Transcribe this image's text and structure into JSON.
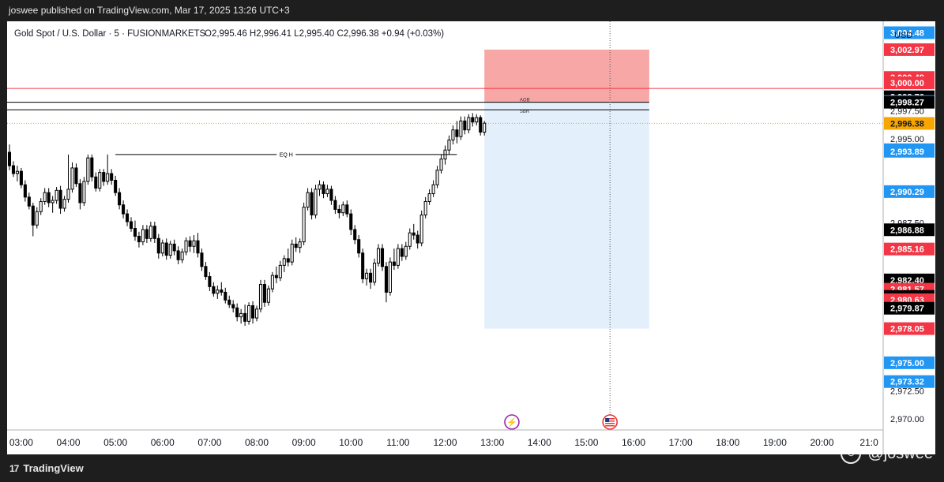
{
  "header": {
    "publish_line": "joswee published on TradingView.com, Mar 17, 2025 13:26 UTC+3"
  },
  "legend": {
    "symbol": "Gold Spot / U.S. Dollar · 5 · FUSIONMARKETS",
    "ohlc": "O2,995.46  H2,996.41  L2,995.40  C2,996.38  +0.94 (+0.03%)"
  },
  "currency": "USD",
  "footer": {
    "brand": "TradingView",
    "watermark": "@joswee"
  },
  "colors": {
    "red": "#f23645",
    "blue": "#2962ff",
    "blue_label": "#2196f3",
    "black": "#000000",
    "orange": "#f7a600",
    "stop_zone": "#f7a7a5",
    "target_zone": "#e3effb",
    "candle": "#000000"
  },
  "chart_data": {
    "type": "candlestick",
    "instrument": "Gold Spot / U.S. Dollar",
    "timeframe": "5",
    "x_ticks": [
      "03:00",
      "04:00",
      "05:00",
      "06:00",
      "07:00",
      "08:00",
      "09:00",
      "10:00",
      "11:00",
      "12:00",
      "13:00",
      "14:00",
      "15:00",
      "16:00",
      "17:00",
      "18:00",
      "19:00",
      "20:00",
      "21:0"
    ],
    "y_ticks": [
      "2,997.50",
      "2,995.00",
      "2,987.50",
      "2,972.50",
      "2,970.00"
    ],
    "ylim": [
      2969,
      3005.5
    ],
    "xlim": [
      "02:42",
      "21:18"
    ],
    "price_labels": [
      {
        "text": "3,004.48",
        "value": 3004.48,
        "color": "blue"
      },
      {
        "text": "3,002.97",
        "value": 3002.97,
        "color": "red"
      },
      {
        "text": "3,000.48",
        "value": 3000.48,
        "color": "red"
      },
      {
        "text": "3,000.00",
        "value": 3000.0,
        "color": "red"
      },
      {
        "text": "2,998.76",
        "value": 2998.76,
        "color": "black"
      },
      {
        "text": "2,998.34",
        "value": 2998.34,
        "color": "blue"
      },
      {
        "text": "2,998.27",
        "value": 2998.27,
        "color": "black"
      },
      {
        "text": "2,996.38",
        "value": 2996.38,
        "color": "orange"
      },
      {
        "text": "2,994.03",
        "value": 2994.03,
        "color": "blue"
      },
      {
        "text": "2,993.89",
        "value": 2993.89,
        "color": "blue"
      },
      {
        "text": "2,990.29",
        "value": 2990.29,
        "color": "blue"
      },
      {
        "text": "2,986.88",
        "value": 2986.88,
        "color": "black"
      },
      {
        "text": "2,985.16",
        "value": 2985.16,
        "color": "red"
      },
      {
        "text": "2,982.40",
        "value": 2982.4,
        "color": "black"
      },
      {
        "text": "2,981.57",
        "value": 2981.57,
        "color": "red"
      },
      {
        "text": "2,980.93",
        "value": 2980.93,
        "color": "black"
      },
      {
        "text": "2,980.63",
        "value": 2980.63,
        "color": "red"
      },
      {
        "text": "2,979.87",
        "value": 2979.87,
        "color": "black"
      },
      {
        "text": "2,978.05",
        "value": 2978.05,
        "color": "red"
      },
      {
        "text": "2,975.00",
        "value": 2975.0,
        "color": "blue"
      },
      {
        "text": "2,973.32",
        "value": 2973.32,
        "color": "blue"
      }
    ],
    "annotations": [
      {
        "text": "EQ H",
        "value": 2993.6,
        "from": "05:00",
        "to": "12:15"
      },
      {
        "text": "AOB",
        "value": 2998.27,
        "from": "02:42",
        "to": "13:33"
      },
      {
        "text": "SBR",
        "value": 2997.6,
        "from": "02:42",
        "to": "13:33"
      }
    ],
    "horizontal_lines": [
      {
        "value": 2999.5,
        "color": "red"
      },
      {
        "value": 2998.27,
        "color": "black"
      },
      {
        "value": 2997.6,
        "color": "black"
      },
      {
        "value": 2996.38,
        "color": "orange",
        "style": "dotted"
      }
    ],
    "position": {
      "from": "12:50",
      "to": "16:20",
      "entry": 2998.27,
      "stop": 3002.97,
      "target": 2978.05
    },
    "vline_time": "15:30",
    "event_icons": [
      {
        "time": "13:25",
        "kind": "flash"
      },
      {
        "time": "15:30",
        "kind": "us-flag"
      }
    ],
    "candles": [
      {
        "t": "02:45",
        "o": 2993.8,
        "h": 2994.5,
        "l": 2992.2,
        "c": 2992.6
      },
      {
        "t": "02:50",
        "o": 2992.6,
        "h": 2993.0,
        "l": 2991.6,
        "c": 2991.9
      },
      {
        "t": "02:55",
        "o": 2991.9,
        "h": 2992.6,
        "l": 2991.2,
        "c": 2992.1
      },
      {
        "t": "03:00",
        "o": 2992.1,
        "h": 2992.4,
        "l": 2990.6,
        "c": 2990.9
      },
      {
        "t": "03:05",
        "o": 2990.9,
        "h": 2991.3,
        "l": 2989.4,
        "c": 2989.8
      },
      {
        "t": "03:10",
        "o": 2989.8,
        "h": 2990.2,
        "l": 2988.7,
        "c": 2989.0
      },
      {
        "t": "03:15",
        "o": 2989.0,
        "h": 2989.3,
        "l": 2986.3,
        "c": 2987.3
      },
      {
        "t": "03:20",
        "o": 2987.3,
        "h": 2988.9,
        "l": 2987.0,
        "c": 2988.5
      },
      {
        "t": "03:25",
        "o": 2988.5,
        "h": 2989.7,
        "l": 2988.2,
        "c": 2989.4
      },
      {
        "t": "03:30",
        "o": 2989.4,
        "h": 2990.6,
        "l": 2989.1,
        "c": 2990.2
      },
      {
        "t": "03:35",
        "o": 2990.2,
        "h": 2990.6,
        "l": 2988.9,
        "c": 2989.3
      },
      {
        "t": "03:40",
        "o": 2989.3,
        "h": 2989.9,
        "l": 2988.4,
        "c": 2989.5
      },
      {
        "t": "03:45",
        "o": 2989.5,
        "h": 2990.7,
        "l": 2989.2,
        "c": 2990.4
      },
      {
        "t": "03:50",
        "o": 2990.4,
        "h": 2990.8,
        "l": 2988.3,
        "c": 2988.8
      },
      {
        "t": "03:55",
        "o": 2988.8,
        "h": 2989.9,
        "l": 2988.5,
        "c": 2989.6
      },
      {
        "t": "04:00",
        "o": 2989.6,
        "h": 2993.6,
        "l": 2989.3,
        "c": 2990.5
      },
      {
        "t": "04:05",
        "o": 2990.5,
        "h": 2992.9,
        "l": 2990.2,
        "c": 2992.4
      },
      {
        "t": "04:10",
        "o": 2992.4,
        "h": 2992.8,
        "l": 2990.7,
        "c": 2991.0
      },
      {
        "t": "04:15",
        "o": 2991.0,
        "h": 2991.4,
        "l": 2988.7,
        "c": 2989.3
      },
      {
        "t": "04:20",
        "o": 2989.3,
        "h": 2991.6,
        "l": 2989.0,
        "c": 2991.2
      },
      {
        "t": "04:25",
        "o": 2991.2,
        "h": 2993.6,
        "l": 2990.9,
        "c": 2993.3
      },
      {
        "t": "04:30",
        "o": 2993.3,
        "h": 2993.6,
        "l": 2991.2,
        "c": 2991.6
      },
      {
        "t": "04:35",
        "o": 2991.6,
        "h": 2992.0,
        "l": 2990.3,
        "c": 2990.6
      },
      {
        "t": "04:40",
        "o": 2990.6,
        "h": 2992.3,
        "l": 2990.3,
        "c": 2992.0
      },
      {
        "t": "04:45",
        "o": 2992.0,
        "h": 2992.3,
        "l": 2990.8,
        "c": 2991.2
      },
      {
        "t": "04:50",
        "o": 2991.2,
        "h": 2993.6,
        "l": 2990.9,
        "c": 2991.9
      },
      {
        "t": "04:55",
        "o": 2991.9,
        "h": 2992.3,
        "l": 2990.9,
        "c": 2991.3
      },
      {
        "t": "05:00",
        "o": 2991.3,
        "h": 2991.7,
        "l": 2989.9,
        "c": 2990.2
      },
      {
        "t": "05:05",
        "o": 2990.2,
        "h": 2990.6,
        "l": 2988.7,
        "c": 2989.1
      },
      {
        "t": "05:10",
        "o": 2989.1,
        "h": 2989.5,
        "l": 2987.9,
        "c": 2988.3
      },
      {
        "t": "05:15",
        "o": 2988.3,
        "h": 2988.7,
        "l": 2987.2,
        "c": 2987.6
      },
      {
        "t": "05:20",
        "o": 2987.6,
        "h": 2988.0,
        "l": 2986.7,
        "c": 2987.0
      },
      {
        "t": "05:25",
        "o": 2987.0,
        "h": 2987.7,
        "l": 2985.9,
        "c": 2986.3
      },
      {
        "t": "05:30",
        "o": 2986.3,
        "h": 2986.7,
        "l": 2985.3,
        "c": 2985.8
      },
      {
        "t": "05:35",
        "o": 2985.8,
        "h": 2987.3,
        "l": 2985.5,
        "c": 2986.9
      },
      {
        "t": "05:40",
        "o": 2986.9,
        "h": 2987.3,
        "l": 2985.7,
        "c": 2986.1
      },
      {
        "t": "05:45",
        "o": 2986.1,
        "h": 2987.6,
        "l": 2985.8,
        "c": 2987.2
      },
      {
        "t": "05:50",
        "o": 2987.2,
        "h": 2987.6,
        "l": 2985.7,
        "c": 2986.1
      },
      {
        "t": "05:55",
        "o": 2986.1,
        "h": 2986.5,
        "l": 2984.3,
        "c": 2984.8
      },
      {
        "t": "06:00",
        "o": 2984.8,
        "h": 2986.0,
        "l": 2984.5,
        "c": 2985.7
      },
      {
        "t": "06:05",
        "o": 2985.7,
        "h": 2986.1,
        "l": 2984.2,
        "c": 2984.6
      },
      {
        "t": "06:10",
        "o": 2984.6,
        "h": 2985.9,
        "l": 2984.3,
        "c": 2985.6
      },
      {
        "t": "06:15",
        "o": 2985.6,
        "h": 2986.0,
        "l": 2984.6,
        "c": 2985.0
      },
      {
        "t": "06:20",
        "o": 2985.0,
        "h": 2985.4,
        "l": 2983.8,
        "c": 2984.2
      },
      {
        "t": "06:25",
        "o": 2984.2,
        "h": 2985.2,
        "l": 2983.9,
        "c": 2984.9
      },
      {
        "t": "06:30",
        "o": 2984.9,
        "h": 2986.2,
        "l": 2984.6,
        "c": 2985.9
      },
      {
        "t": "06:35",
        "o": 2985.9,
        "h": 2986.3,
        "l": 2984.9,
        "c": 2985.4
      },
      {
        "t": "06:40",
        "o": 2985.4,
        "h": 2986.4,
        "l": 2984.8,
        "c": 2985.9
      },
      {
        "t": "06:45",
        "o": 2985.9,
        "h": 2986.6,
        "l": 2984.4,
        "c": 2984.8
      },
      {
        "t": "06:50",
        "o": 2984.8,
        "h": 2985.2,
        "l": 2983.2,
        "c": 2983.6
      },
      {
        "t": "06:55",
        "o": 2983.6,
        "h": 2984.0,
        "l": 2982.4,
        "c": 2982.7
      },
      {
        "t": "07:00",
        "o": 2982.7,
        "h": 2983.1,
        "l": 2981.4,
        "c": 2981.8
      },
      {
        "t": "07:05",
        "o": 2981.8,
        "h": 2982.2,
        "l": 2980.9,
        "c": 2981.2
      },
      {
        "t": "07:10",
        "o": 2981.2,
        "h": 2981.9,
        "l": 2980.7,
        "c": 2981.5
      },
      {
        "t": "07:15",
        "o": 2981.5,
        "h": 2982.2,
        "l": 2981.0,
        "c": 2981.3
      },
      {
        "t": "07:20",
        "o": 2981.3,
        "h": 2981.7,
        "l": 2980.3,
        "c": 2980.6
      },
      {
        "t": "07:25",
        "o": 2980.6,
        "h": 2981.0,
        "l": 2979.9,
        "c": 2980.2
      },
      {
        "t": "07:30",
        "o": 2980.2,
        "h": 2980.6,
        "l": 2979.5,
        "c": 2979.9
      },
      {
        "t": "07:35",
        "o": 2979.9,
        "h": 2980.3,
        "l": 2978.7,
        "c": 2979.1
      },
      {
        "t": "07:40",
        "o": 2979.1,
        "h": 2979.8,
        "l": 2978.5,
        "c": 2979.4
      },
      {
        "t": "07:45",
        "o": 2979.4,
        "h": 2980.2,
        "l": 2978.3,
        "c": 2978.7
      },
      {
        "t": "07:50",
        "o": 2978.7,
        "h": 2980.4,
        "l": 2978.4,
        "c": 2980.1
      },
      {
        "t": "07:55",
        "o": 2980.1,
        "h": 2980.5,
        "l": 2978.5,
        "c": 2979.0
      },
      {
        "t": "08:00",
        "o": 2979.0,
        "h": 2980.1,
        "l": 2978.7,
        "c": 2979.8
      },
      {
        "t": "08:05",
        "o": 2979.8,
        "h": 2982.4,
        "l": 2979.5,
        "c": 2982.0
      },
      {
        "t": "08:10",
        "o": 2982.0,
        "h": 2982.4,
        "l": 2980.0,
        "c": 2980.4
      },
      {
        "t": "08:15",
        "o": 2980.4,
        "h": 2981.9,
        "l": 2980.1,
        "c": 2981.6
      },
      {
        "t": "08:20",
        "o": 2981.6,
        "h": 2983.1,
        "l": 2981.3,
        "c": 2982.8
      },
      {
        "t": "08:25",
        "o": 2982.8,
        "h": 2983.6,
        "l": 2982.1,
        "c": 2982.6
      },
      {
        "t": "08:30",
        "o": 2982.6,
        "h": 2984.1,
        "l": 2982.3,
        "c": 2983.7
      },
      {
        "t": "08:35",
        "o": 2983.7,
        "h": 2984.6,
        "l": 2983.1,
        "c": 2984.3
      },
      {
        "t": "08:40",
        "o": 2984.3,
        "h": 2985.2,
        "l": 2983.6,
        "c": 2984.0
      },
      {
        "t": "08:45",
        "o": 2984.0,
        "h": 2986.0,
        "l": 2983.7,
        "c": 2985.6
      },
      {
        "t": "08:50",
        "o": 2985.6,
        "h": 2986.2,
        "l": 2984.9,
        "c": 2985.3
      },
      {
        "t": "08:55",
        "o": 2985.3,
        "h": 2986.1,
        "l": 2984.8,
        "c": 2985.8
      },
      {
        "t": "09:00",
        "o": 2985.8,
        "h": 2989.3,
        "l": 2985.5,
        "c": 2988.9
      },
      {
        "t": "09:05",
        "o": 2988.9,
        "h": 2990.6,
        "l": 2988.6,
        "c": 2990.2
      },
      {
        "t": "09:10",
        "o": 2990.2,
        "h": 2990.6,
        "l": 2987.8,
        "c": 2988.2
      },
      {
        "t": "09:15",
        "o": 2988.2,
        "h": 2990.9,
        "l": 2987.9,
        "c": 2990.5
      },
      {
        "t": "09:20",
        "o": 2990.5,
        "h": 2991.3,
        "l": 2989.9,
        "c": 2990.9
      },
      {
        "t": "09:25",
        "o": 2990.9,
        "h": 2991.2,
        "l": 2989.7,
        "c": 2990.1
      },
      {
        "t": "09:30",
        "o": 2990.1,
        "h": 2990.9,
        "l": 2989.8,
        "c": 2990.5
      },
      {
        "t": "09:35",
        "o": 2990.5,
        "h": 2990.8,
        "l": 2989.1,
        "c": 2989.5
      },
      {
        "t": "09:40",
        "o": 2989.5,
        "h": 2989.9,
        "l": 2988.3,
        "c": 2988.7
      },
      {
        "t": "09:45",
        "o": 2988.7,
        "h": 2989.1,
        "l": 2987.9,
        "c": 2988.4
      },
      {
        "t": "09:50",
        "o": 2988.4,
        "h": 2989.4,
        "l": 2988.1,
        "c": 2989.1
      },
      {
        "t": "09:55",
        "o": 2989.1,
        "h": 2989.5,
        "l": 2988.0,
        "c": 2988.3
      },
      {
        "t": "10:00",
        "o": 2988.3,
        "h": 2988.7,
        "l": 2986.4,
        "c": 2986.9
      },
      {
        "t": "10:05",
        "o": 2986.9,
        "h": 2987.3,
        "l": 2985.6,
        "c": 2986.0
      },
      {
        "t": "10:10",
        "o": 2986.0,
        "h": 2986.4,
        "l": 2984.4,
        "c": 2984.8
      },
      {
        "t": "10:15",
        "o": 2984.8,
        "h": 2985.2,
        "l": 2982.1,
        "c": 2982.5
      },
      {
        "t": "10:20",
        "o": 2982.5,
        "h": 2983.4,
        "l": 2981.9,
        "c": 2983.0
      },
      {
        "t": "10:25",
        "o": 2983.0,
        "h": 2983.4,
        "l": 2981.6,
        "c": 2982.2
      },
      {
        "t": "10:30",
        "o": 2982.2,
        "h": 2984.3,
        "l": 2981.9,
        "c": 2983.9
      },
      {
        "t": "10:35",
        "o": 2983.9,
        "h": 2985.6,
        "l": 2983.6,
        "c": 2985.2
      },
      {
        "t": "10:40",
        "o": 2985.2,
        "h": 2985.6,
        "l": 2983.2,
        "c": 2983.6
      },
      {
        "t": "10:45",
        "o": 2983.6,
        "h": 2984.0,
        "l": 2980.4,
        "c": 2981.3
      },
      {
        "t": "10:50",
        "o": 2981.3,
        "h": 2984.4,
        "l": 2981.0,
        "c": 2984.0
      },
      {
        "t": "10:55",
        "o": 2984.0,
        "h": 2985.2,
        "l": 2983.3,
        "c": 2983.7
      },
      {
        "t": "11:00",
        "o": 2983.7,
        "h": 2985.6,
        "l": 2983.4,
        "c": 2985.2
      },
      {
        "t": "11:05",
        "o": 2985.2,
        "h": 2985.6,
        "l": 2984.1,
        "c": 2984.5
      },
      {
        "t": "11:10",
        "o": 2984.5,
        "h": 2985.8,
        "l": 2984.2,
        "c": 2985.4
      },
      {
        "t": "11:15",
        "o": 2985.4,
        "h": 2987.0,
        "l": 2985.1,
        "c": 2986.6
      },
      {
        "t": "11:20",
        "o": 2986.6,
        "h": 2987.4,
        "l": 2986.0,
        "c": 2986.4
      },
      {
        "t": "11:25",
        "o": 2986.4,
        "h": 2986.8,
        "l": 2985.2,
        "c": 2985.7
      },
      {
        "t": "11:30",
        "o": 2985.7,
        "h": 2988.6,
        "l": 2985.4,
        "c": 2988.2
      },
      {
        "t": "11:35",
        "o": 2988.2,
        "h": 2989.8,
        "l": 2987.9,
        "c": 2989.4
      },
      {
        "t": "11:40",
        "o": 2989.4,
        "h": 2990.5,
        "l": 2989.1,
        "c": 2990.1
      },
      {
        "t": "11:45",
        "o": 2990.1,
        "h": 2991.3,
        "l": 2989.8,
        "c": 2990.9
      },
      {
        "t": "11:50",
        "o": 2990.9,
        "h": 2992.6,
        "l": 2990.6,
        "c": 2992.2
      },
      {
        "t": "11:55",
        "o": 2992.2,
        "h": 2993.6,
        "l": 2991.9,
        "c": 2993.2
      },
      {
        "t": "12:00",
        "o": 2993.2,
        "h": 2994.4,
        "l": 2992.7,
        "c": 2994.0
      },
      {
        "t": "12:05",
        "o": 2994.0,
        "h": 2995.3,
        "l": 2993.6,
        "c": 2994.9
      },
      {
        "t": "12:10",
        "o": 2994.9,
        "h": 2996.2,
        "l": 2994.5,
        "c": 2995.8
      },
      {
        "t": "12:15",
        "o": 2995.8,
        "h": 2996.6,
        "l": 2994.6,
        "c": 2995.2
      },
      {
        "t": "12:20",
        "o": 2995.2,
        "h": 2997.0,
        "l": 2994.9,
        "c": 2996.6
      },
      {
        "t": "12:25",
        "o": 2996.6,
        "h": 2997.0,
        "l": 2995.4,
        "c": 2995.8
      },
      {
        "t": "12:30",
        "o": 2995.8,
        "h": 2997.2,
        "l": 2995.5,
        "c": 2996.9
      },
      {
        "t": "12:35",
        "o": 2996.9,
        "h": 2997.3,
        "l": 2996.1,
        "c": 2996.5
      },
      {
        "t": "12:40",
        "o": 2996.5,
        "h": 2997.2,
        "l": 2996.2,
        "c": 2996.9
      },
      {
        "t": "12:45",
        "o": 2996.9,
        "h": 2997.1,
        "l": 2995.3,
        "c": 2995.6
      },
      {
        "t": "12:50",
        "o": 2995.6,
        "h": 2996.6,
        "l": 2995.3,
        "c": 2996.4
      }
    ]
  }
}
